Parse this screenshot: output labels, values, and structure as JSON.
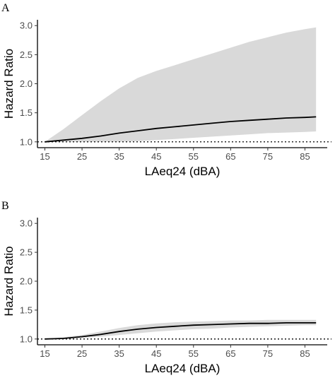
{
  "chart_data": [
    {
      "panel": "A",
      "type": "line",
      "xlabel": "LAeq24 (dBA)",
      "ylabel": "Hazard Ratio",
      "xlim": [
        13,
        91
      ],
      "ylim": [
        0.9,
        3.1
      ],
      "xticks": [
        15,
        25,
        35,
        45,
        55,
        65,
        75,
        85
      ],
      "yticks": [
        1.0,
        1.5,
        2.0,
        2.5,
        3.0
      ],
      "ytick_labels": [
        "1.0",
        "1.5",
        "2.0",
        "2.5",
        "3.0"
      ],
      "reference_line": 1.0,
      "series": [
        {
          "x": [
            15,
            20,
            25,
            30,
            35,
            40,
            45,
            50,
            55,
            60,
            65,
            70,
            75,
            80,
            85,
            88
          ],
          "y": [
            1.0,
            1.03,
            1.06,
            1.1,
            1.15,
            1.19,
            1.23,
            1.26,
            1.29,
            1.32,
            1.35,
            1.37,
            1.39,
            1.41,
            1.42,
            1.43
          ],
          "lower": [
            1.0,
            1.0,
            1.0,
            1.0,
            1.0,
            1.01,
            1.03,
            1.05,
            1.07,
            1.09,
            1.11,
            1.13,
            1.15,
            1.16,
            1.17,
            1.18
          ],
          "upper": [
            1.0,
            1.22,
            1.46,
            1.7,
            1.92,
            2.1,
            2.22,
            2.32,
            2.42,
            2.52,
            2.62,
            2.72,
            2.8,
            2.88,
            2.94,
            2.97
          ]
        }
      ]
    },
    {
      "panel": "B",
      "type": "line",
      "xlabel": "LAeq24 (dBA)",
      "ylabel": "Hazard Ratio",
      "xlim": [
        13,
        91
      ],
      "ylim": [
        0.9,
        3.1
      ],
      "xticks": [
        15,
        25,
        35,
        45,
        55,
        65,
        75,
        85
      ],
      "yticks": [
        1.0,
        1.5,
        2.0,
        2.5,
        3.0
      ],
      "ytick_labels": [
        "1.0",
        "1.5",
        "2.0",
        "2.5",
        "3.0"
      ],
      "reference_line": 1.0,
      "series": [
        {
          "x": [
            15,
            20,
            25,
            30,
            35,
            40,
            45,
            50,
            55,
            60,
            65,
            70,
            75,
            80,
            85,
            88
          ],
          "y": [
            1.0,
            1.01,
            1.04,
            1.08,
            1.13,
            1.17,
            1.2,
            1.22,
            1.24,
            1.25,
            1.26,
            1.27,
            1.27,
            1.28,
            1.28,
            1.28
          ],
          "lower": [
            1.0,
            1.0,
            1.02,
            1.04,
            1.07,
            1.1,
            1.13,
            1.15,
            1.17,
            1.18,
            1.2,
            1.21,
            1.22,
            1.23,
            1.24,
            1.24
          ],
          "upper": [
            1.0,
            1.03,
            1.07,
            1.13,
            1.19,
            1.24,
            1.27,
            1.29,
            1.3,
            1.31,
            1.32,
            1.32,
            1.33,
            1.33,
            1.33,
            1.33
          ]
        }
      ]
    }
  ]
}
